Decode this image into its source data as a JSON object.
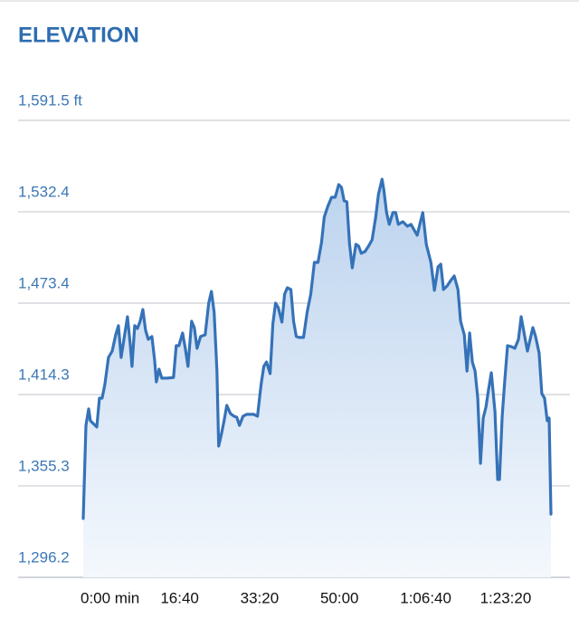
{
  "chart_data": {
    "type": "area",
    "title": "ELEVATION",
    "color": "#3572b8",
    "grid": true,
    "x": [
      0,
      34,
      68,
      90,
      124,
      170,
      203,
      237,
      271,
      316,
      362,
      407,
      441,
      475,
      509,
      554,
      588,
      610,
      644,
      678,
      712,
      746,
      780,
      814,
      859,
      893,
      915,
      949,
      983,
      1051,
      1130,
      1164,
      1198,
      1243,
      1277,
      1311,
      1356,
      1390,
      1424,
      1469,
      1526,
      1571,
      1605,
      1639,
      1673,
      1695,
      1729,
      1763,
      1797,
      1842,
      1887,
      1921,
      1955,
      2000,
      2045,
      2136,
      2181,
      2226,
      2260,
      2294,
      2339,
      2373,
      2407,
      2441,
      2486,
      2520,
      2554,
      2599,
      2633,
      2667,
      2701,
      2757,
      2802,
      2848,
      2893,
      2938,
      2983,
      3017,
      3062,
      3108,
      3153,
      3198,
      3232,
      3266,
      3300,
      3334,
      3367,
      3413,
      3447,
      3480,
      3526,
      3571,
      3616,
      3661,
      3695,
      3740,
      3763,
      3797,
      3831,
      3876,
      3910,
      3944,
      4000,
      4057,
      4102,
      4147,
      4181,
      4215,
      4249,
      4294,
      4351,
      4396,
      4441,
      4475,
      4509,
      4554,
      4599,
      4644,
      4690,
      4723,
      4769,
      4803,
      4836,
      4870,
      4904,
      4938,
      4972,
      5006,
      5040,
      5074,
      5108,
      5153,
      5187,
      5210,
      5244,
      5277,
      5311,
      5356,
      5402,
      5447,
      5481,
      5526,
      5560,
      5594,
      5627,
      5661,
      5706,
      5740,
      5774,
      5808,
      5831,
      5854
    ],
    "values": [
      1334.2,
      1394.4,
      1405.0,
      1397.4,
      1395.6,
      1393.3,
      1412.0,
      1412.0,
      1420.8,
      1438.3,
      1442.4,
      1452.9,
      1458.8,
      1438.3,
      1450.0,
      1464.6,
      1447.1,
      1432.5,
      1458.8,
      1457.0,
      1461.7,
      1469.3,
      1455.9,
      1450.0,
      1451.8,
      1436.6,
      1422.5,
      1430.7,
      1424.9,
      1424.9,
      1425.4,
      1445.9,
      1445.9,
      1454.1,
      1444.2,
      1432.5,
      1461.7,
      1457.6,
      1444.2,
      1451.8,
      1452.9,
      1473.4,
      1481.0,
      1467.5,
      1429.5,
      1381.0,
      1388.6,
      1397.4,
      1407.3,
      1402.0,
      1400.3,
      1399.7,
      1394.4,
      1400.3,
      1401.5,
      1401.5,
      1400.3,
      1420.8,
      1432.5,
      1435.4,
      1427.8,
      1459.9,
      1473.4,
      1470.5,
      1461.1,
      1479.2,
      1483.3,
      1482.2,
      1461.7,
      1451.8,
      1451.2,
      1451.2,
      1467.5,
      1479.2,
      1499.7,
      1499.7,
      1512.6,
      1529.0,
      1536.0,
      1541.8,
      1541.8,
      1550.0,
      1548.2,
      1539.5,
      1538.9,
      1511.4,
      1496.2,
      1511.4,
      1510.2,
      1505.6,
      1506.7,
      1510.2,
      1514.3,
      1529.0,
      1543.6,
      1553.5,
      1546.5,
      1531.9,
      1524.3,
      1531.9,
      1531.9,
      1524.3,
      1526.0,
      1523.1,
      1524.3,
      1520.2,
      1517.3,
      1524.9,
      1531.9,
      1511.4,
      1499.7,
      1481.6,
      1496.8,
      1498.5,
      1482.2,
      1484.5,
      1488.0,
      1490.9,
      1482.2,
      1461.7,
      1452.9,
      1429.5,
      1454.1,
      1435.4,
      1429.5,
      1412.0,
      1369.9,
      1399.1,
      1406.1,
      1417.8,
      1428.4,
      1403.2,
      1359.4,
      1359.4,
      1400.3,
      1423.7,
      1445.9,
      1445.3,
      1444.2,
      1450.0,
      1464.6,
      1451.8,
      1442.4,
      1450.0,
      1457.6,
      1451.8,
      1441.2,
      1414.9,
      1412.0,
      1397.4,
      1399.1,
      1337.1
    ],
    "xlim": [
      0,
      5854
    ],
    "xticks": [
      {
        "value": 0,
        "label": "0:00 min"
      },
      {
        "value": 1000,
        "label": "16:40"
      },
      {
        "value": 2000,
        "label": "33:20"
      },
      {
        "value": 3000,
        "label": "50:00"
      },
      {
        "value": 4000,
        "label": "1:06:40"
      },
      {
        "value": 5000,
        "label": "1:23:20"
      }
    ],
    "ylim": [
      1296.2,
      1591.5
    ],
    "yticks": [
      {
        "value": 1591.5,
        "label": "1,591.5 ft"
      },
      {
        "value": 1532.4,
        "label": "1,532.4"
      },
      {
        "value": 1473.4,
        "label": "1,473.4"
      },
      {
        "value": 1414.3,
        "label": "1,414.3"
      },
      {
        "value": 1355.3,
        "label": "1,355.3"
      },
      {
        "value": 1296.2,
        "label": "1,296.2"
      }
    ]
  }
}
